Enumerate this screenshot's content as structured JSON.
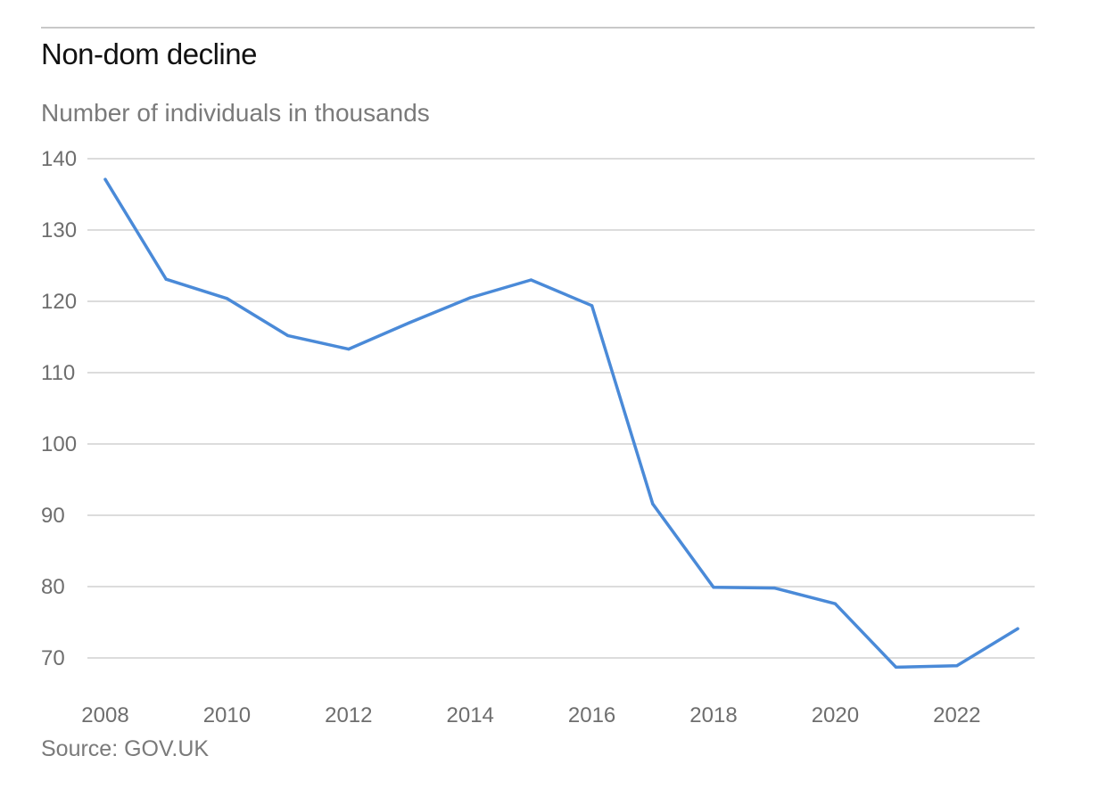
{
  "chart_data": {
    "type": "line",
    "title": "Non-dom decline",
    "subtitle": "Number of individuals in thousands",
    "source": "Source: GOV.UK",
    "xlabel": "",
    "ylabel": "",
    "xlim": [
      2008,
      2023
    ],
    "ylim": [
      70,
      140
    ],
    "yticks": [
      70,
      80,
      90,
      100,
      110,
      120,
      130,
      140
    ],
    "xticks": [
      2008,
      2010,
      2012,
      2014,
      2016,
      2018,
      2020,
      2022
    ],
    "grid": true,
    "series": [
      {
        "color": "#4a8ad8",
        "x": [
          2008,
          2009,
          2010,
          2011,
          2012,
          2013,
          2014,
          2015,
          2016,
          2017,
          2018,
          2019,
          2020,
          2021,
          2022,
          2023
        ],
        "values": [
          137.1,
          123.1,
          120.4,
          115.2,
          113.3,
          117.0,
          120.5,
          123.0,
          119.4,
          91.6,
          79.9,
          79.8,
          77.6,
          68.7,
          68.9,
          74.1
        ]
      }
    ]
  }
}
